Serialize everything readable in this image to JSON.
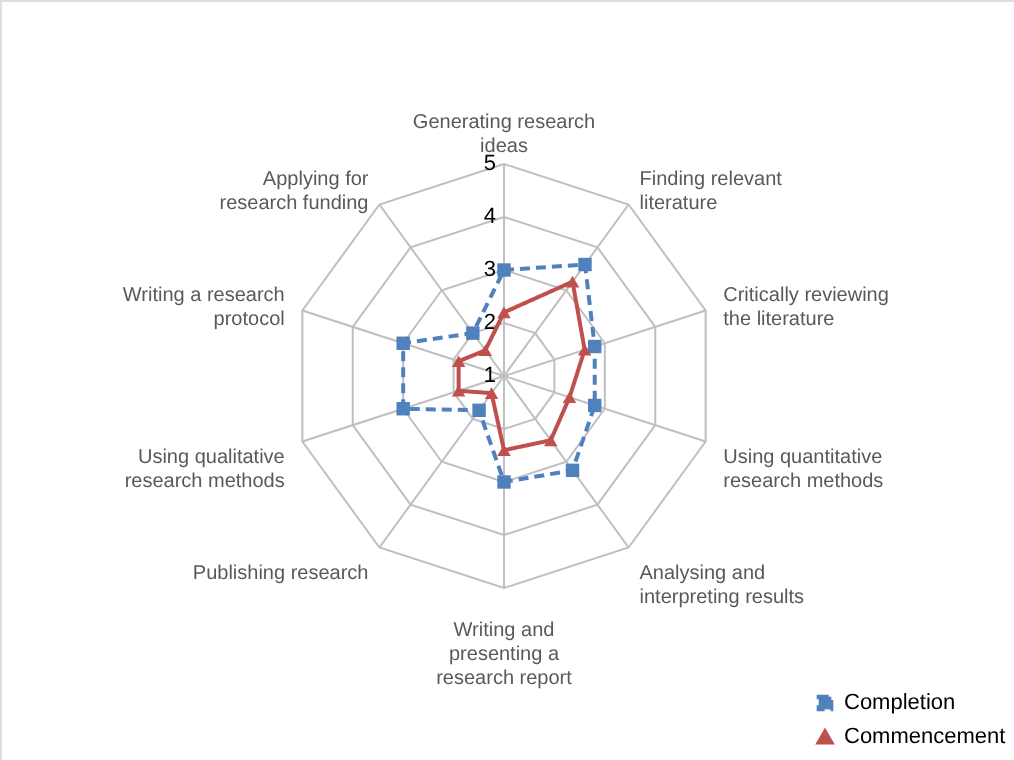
{
  "chart_data": {
    "type": "radar",
    "categories": [
      "Generating research ideas",
      "Finding relevant literature",
      "Critically reviewing the literature",
      "Using quantitative research methods",
      "Analysing and interpreting results",
      "Writing and presenting a research report",
      "Publishing research",
      "Using qualitative research methods",
      "Writing a research protocol",
      "Applying for research funding"
    ],
    "series": [
      {
        "name": "Completion",
        "color": "#4f81bd",
        "marker": "square",
        "line_style": "dashed",
        "values": [
          3.0,
          3.6,
          2.8,
          2.8,
          3.2,
          3.0,
          1.8,
          3.0,
          3.0,
          2.0
        ]
      },
      {
        "name": "Commencement",
        "color": "#c0504d",
        "marker": "triangle",
        "line_style": "solid",
        "values": [
          2.2,
          3.2,
          2.6,
          2.3,
          2.5,
          2.4,
          1.4,
          1.9,
          1.9,
          1.6
        ]
      }
    ],
    "ylim": [
      1,
      5
    ],
    "yticks": [
      1,
      2,
      3,
      4,
      5
    ],
    "grid": true,
    "legend": "bottom right"
  }
}
